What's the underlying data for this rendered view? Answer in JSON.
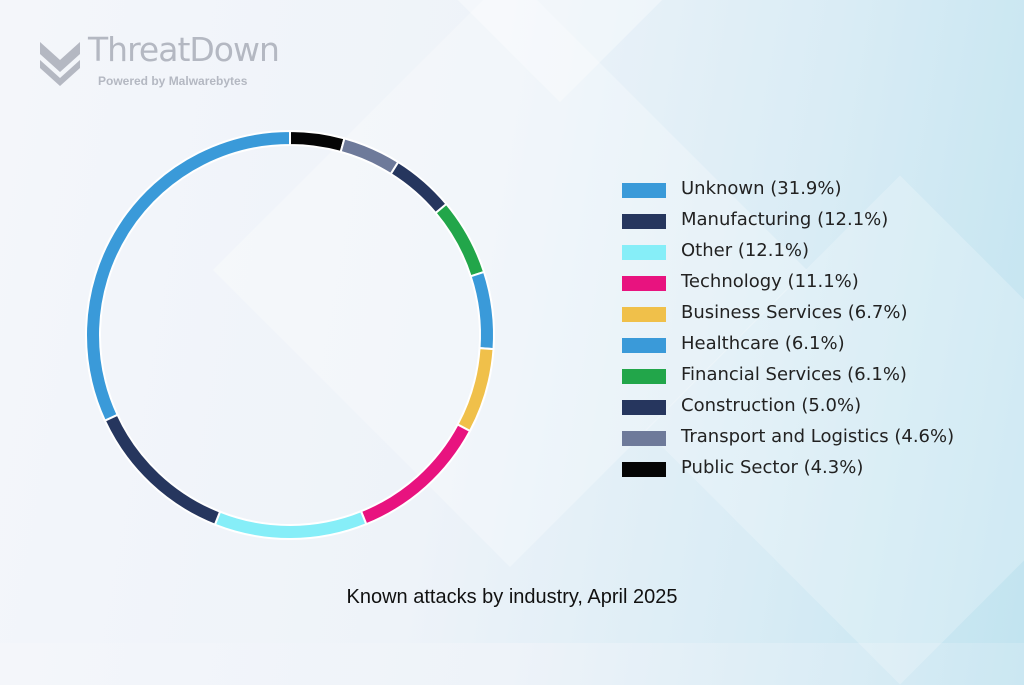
{
  "brand": {
    "name": "ThreatDown",
    "tagline": "Powered by Malwarebytes"
  },
  "chart_data": {
    "type": "pie",
    "title": "Known attacks by industry, April 2025",
    "legend_position": "right",
    "slices": [
      {
        "label": "Unknown (31.9%)",
        "value": 31.9,
        "color": "#3a9ad9"
      },
      {
        "label": "Manufacturing (12.1%)",
        "value": 12.1,
        "color": "#26365e"
      },
      {
        "label": "Other (12.1%)",
        "value": 12.1,
        "color": "#86eef8"
      },
      {
        "label": "Technology (11.1%)",
        "value": 11.1,
        "color": "#e8137f"
      },
      {
        "label": "Business Services (6.7%)",
        "value": 6.7,
        "color": "#f0c04a"
      },
      {
        "label": "Healthcare (6.1%)",
        "value": 6.1,
        "color": "#3a9ad9"
      },
      {
        "label": "Financial Services (6.1%)",
        "value": 6.1,
        "color": "#22a64a"
      },
      {
        "label": "Construction (5.0%)",
        "value": 5.0,
        "color": "#26365e"
      },
      {
        "label": "Transport and Logistics (4.6%)",
        "value": 4.6,
        "color": "#6e7a9a"
      },
      {
        "label": "Public Sector (4.3%)",
        "value": 4.3,
        "color": "#050505"
      }
    ]
  }
}
